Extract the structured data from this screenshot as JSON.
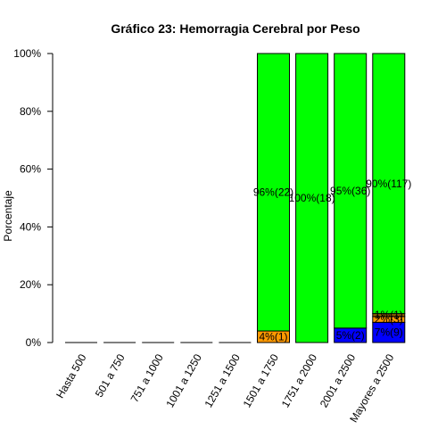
{
  "chart_data": {
    "type": "bar",
    "stacked": true,
    "title": "Gráfico 23: Hemorragia Cerebral por Peso",
    "ylabel": "Porcentaje",
    "xlabel": "",
    "ylim": [
      0,
      100
    ],
    "yticks": [
      "0%",
      "20%",
      "40%",
      "60%",
      "80%",
      "100%"
    ],
    "categories": [
      "Hasta 500",
      "501 a 750",
      "751 a 1000",
      "1001 a 1250",
      "1251 a 1500",
      "1501 a 1750",
      "1751 a 2000",
      "2001 a 2500",
      "Mayores a 2500"
    ],
    "series": [
      {
        "color": "#0000ff",
        "values": [
          0,
          0,
          0,
          0,
          0,
          0,
          0,
          5,
          7
        ],
        "labels": [
          "",
          "",
          "",
          "",
          "",
          "",
          "",
          "5%(2)",
          "7%(9)"
        ]
      },
      {
        "color": "#ff9900",
        "values": [
          0,
          0,
          0,
          0,
          0,
          4,
          0,
          0,
          2
        ],
        "labels": [
          "",
          "",
          "",
          "",
          "",
          "4%(1)",
          "",
          "",
          "2%(3)"
        ]
      },
      {
        "color": "#996600",
        "values": [
          0,
          0,
          0,
          0,
          0,
          0,
          0,
          0,
          1
        ],
        "labels": [
          "",
          "",
          "",
          "",
          "",
          "",
          "",
          "",
          "1%(1)"
        ]
      },
      {
        "color": "#00ff00",
        "values": [
          0,
          0,
          0,
          0,
          0,
          96,
          100,
          95,
          90
        ],
        "labels": [
          "",
          "",
          "",
          "",
          "",
          "96%(22)",
          "100%(18)",
          "95%(36)",
          "90%(117)"
        ]
      }
    ],
    "grid": false,
    "legend": "none"
  }
}
